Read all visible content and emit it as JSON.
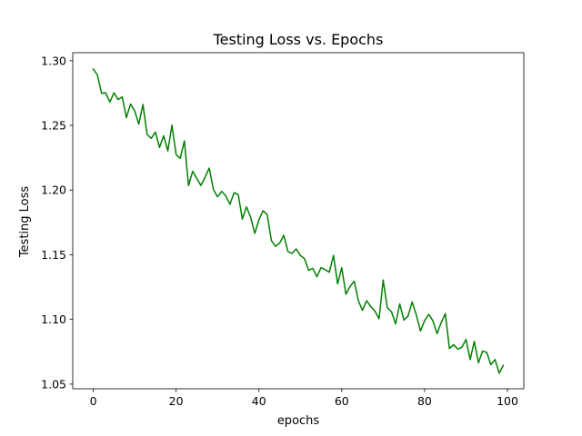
{
  "chart_data": {
    "type": "line",
    "title": "Testing Loss vs. Epochs",
    "xlabel": "epochs",
    "ylabel": "Testing Loss",
    "xlim": [
      -4.95,
      103.95
    ],
    "ylim": [
      1.0464,
      1.3062
    ],
    "xticks": [
      0,
      20,
      40,
      60,
      80,
      100
    ],
    "yticks": [
      1.05,
      1.1,
      1.15,
      1.2,
      1.25,
      1.3
    ],
    "xtick_labels": [
      "0",
      "20",
      "40",
      "60",
      "80",
      "100"
    ],
    "ytick_labels": [
      "1.05",
      "1.10",
      "1.15",
      "1.20",
      "1.25",
      "1.30"
    ],
    "grid": false,
    "legend": "none",
    "series": [
      {
        "color": "#008000",
        "x": [
          0,
          1,
          2,
          3,
          4,
          5,
          6,
          7,
          8,
          9,
          10,
          11,
          12,
          13,
          14,
          15,
          16,
          17,
          18,
          19,
          20,
          21,
          22,
          23,
          24,
          25,
          26,
          27,
          28,
          29,
          30,
          31,
          32,
          33,
          34,
          35,
          36,
          37,
          38,
          39,
          40,
          41,
          42,
          43,
          44,
          45,
          46,
          47,
          48,
          49,
          50,
          51,
          52,
          53,
          54,
          55,
          56,
          57,
          58,
          59,
          60,
          61,
          62,
          63,
          64,
          65,
          66,
          67,
          68,
          69,
          70,
          71,
          72,
          73,
          74,
          75,
          76,
          77,
          78,
          79,
          80,
          81,
          82,
          83,
          84,
          85,
          86,
          87,
          88,
          89,
          90,
          91,
          92,
          93,
          94,
          95,
          96,
          97,
          98,
          99
        ],
        "y": [
          1.2935,
          1.289,
          1.2748,
          1.2752,
          1.268,
          1.2752,
          1.27,
          1.272,
          1.256,
          1.2665,
          1.2612,
          1.251,
          1.2662,
          1.243,
          1.24,
          1.2448,
          1.233,
          1.242,
          1.2302,
          1.2502,
          1.2275,
          1.2245,
          1.238,
          1.2035,
          1.2145,
          1.209,
          1.2035,
          1.21,
          1.217,
          1.2005,
          1.1948,
          1.199,
          1.1955,
          1.189,
          1.198,
          1.1965,
          1.1775,
          1.187,
          1.179,
          1.1665,
          1.177,
          1.184,
          1.181,
          1.161,
          1.1565,
          1.159,
          1.165,
          1.1525,
          1.151,
          1.1545,
          1.1495,
          1.147,
          1.138,
          1.1395,
          1.133,
          1.14,
          1.1385,
          1.1365,
          1.1495,
          1.1275,
          1.14,
          1.1195,
          1.1255,
          1.1295,
          1.1145,
          1.107,
          1.1145,
          1.11,
          1.1065,
          1.1005,
          1.1305,
          1.109,
          1.106,
          1.0965,
          1.112,
          1.0995,
          1.1025,
          1.1135,
          1.1035,
          1.091,
          1.099,
          1.104,
          1.099,
          1.089,
          1.0975,
          1.1045,
          1.0775,
          1.0805,
          1.077,
          1.0785,
          1.0845,
          1.069,
          1.083,
          1.0665,
          1.0755,
          1.0745,
          1.065,
          1.069,
          1.0585,
          1.0645
        ]
      }
    ]
  }
}
